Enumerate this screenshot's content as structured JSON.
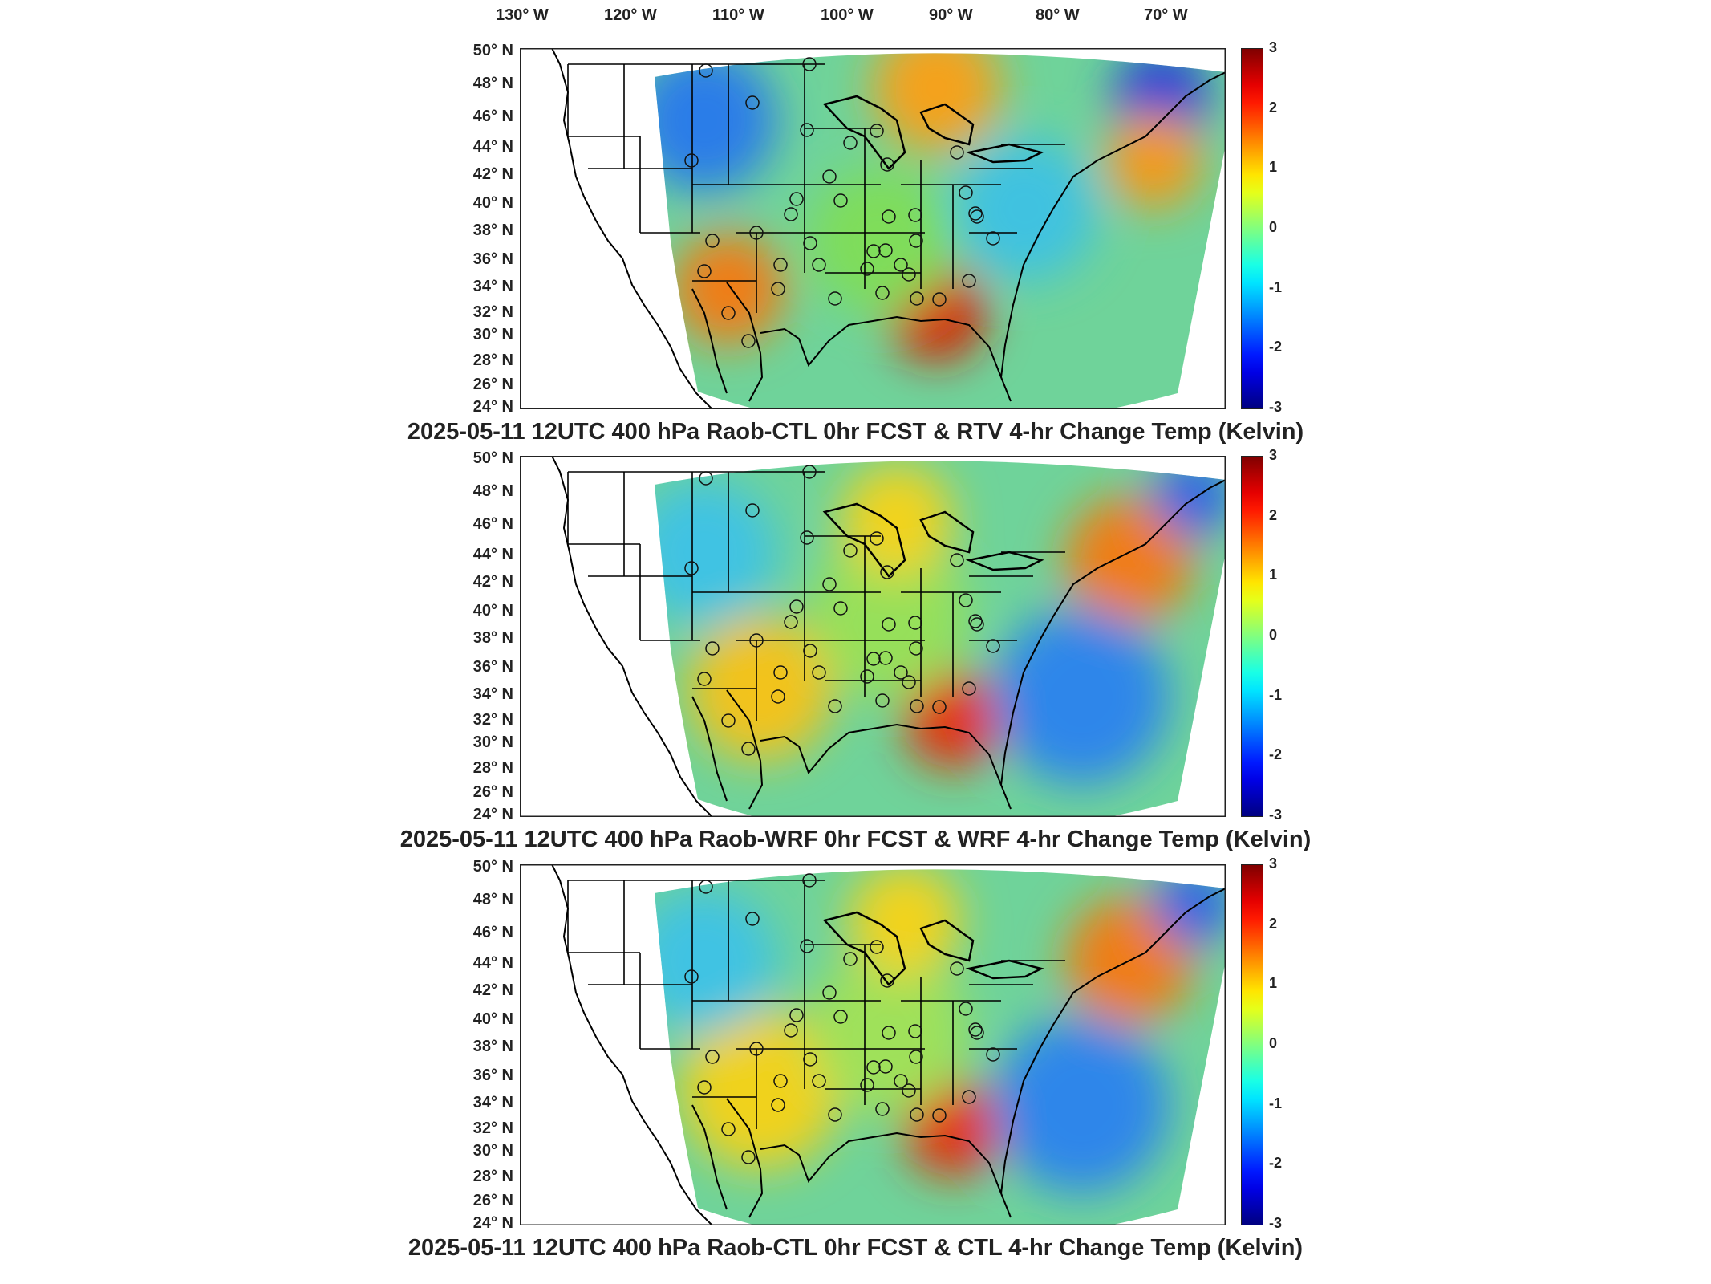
{
  "lon_labels": [
    "130° W",
    "120° W",
    "110° W",
    "100° W",
    "90° W",
    "80° W",
    "70° W"
  ],
  "lat_labels": [
    "50° N",
    "48° N",
    "46° N",
    "44° N",
    "42° N",
    "40° N",
    "38° N",
    "36° N",
    "34° N",
    "32° N",
    "30° N",
    "28° N",
    "26° N",
    "24° N"
  ],
  "colorbar": {
    "ticks": [
      "3",
      "2",
      "1",
      "0",
      "-1",
      "-2",
      "-3"
    ],
    "min": -3,
    "max": 3,
    "colormap": "jet",
    "unit": "Kelvin"
  },
  "panels": [
    {
      "title": "2025-05-11 12UTC 400 hPa Raob-CTL 0hr FCST & RTV 4-hr Change Temp (Kelvin)"
    },
    {
      "title": "2025-05-11 12UTC 400 hPa Raob-WRF 0hr FCST & WRF 4-hr Change Temp (Kelvin)"
    },
    {
      "title": "2025-05-11 12UTC 400 hPa Raob-CTL 0hr FCST & CTL 4-hr Change Temp (Kelvin)"
    }
  ],
  "colors": {
    "coast": "#000000",
    "frame": "#222222"
  }
}
